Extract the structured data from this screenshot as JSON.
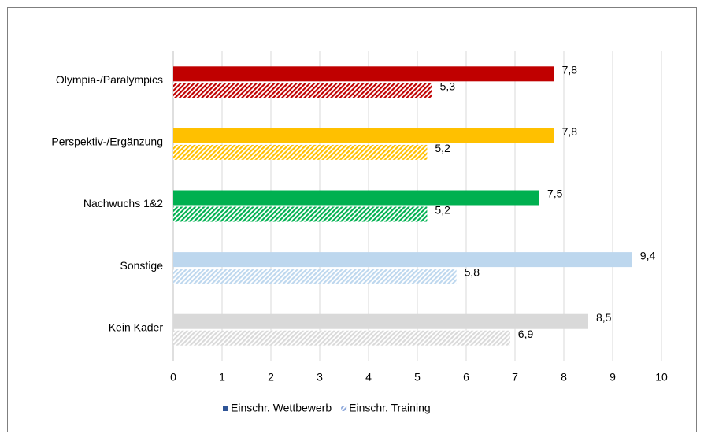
{
  "chart_data": {
    "type": "bar",
    "orientation": "horizontal",
    "categories": [
      "Olympia-/Paralympics",
      "Perspektiv-/Ergänzung",
      "Nachwuchs 1&2",
      "Sonstige",
      "Kein Kader"
    ],
    "category_colors": [
      "#c00000",
      "#ffc000",
      "#00b050",
      "#bdd7ee",
      "#d9d9d9"
    ],
    "series": [
      {
        "name": "Einschr. Wettbewerb",
        "color": "#2f5597",
        "style": "solid",
        "values": [
          7.8,
          7.8,
          7.5,
          9.4,
          8.5
        ],
        "value_labels": [
          "7,8",
          "7,8",
          "7,5",
          "9,4",
          "8,5"
        ]
      },
      {
        "name": "Einschr. Training",
        "color": "#8faadc",
        "style": "hatched",
        "values": [
          5.3,
          5.2,
          5.2,
          5.8,
          6.9
        ],
        "value_labels": [
          "5,3",
          "5,2",
          "5,2",
          "5,8",
          "6,9"
        ]
      }
    ],
    "xlim": [
      0,
      10
    ],
    "xticks": [
      0,
      1,
      2,
      3,
      4,
      5,
      6,
      7,
      8,
      9,
      10
    ],
    "grid": true,
    "legend": "bottom"
  }
}
